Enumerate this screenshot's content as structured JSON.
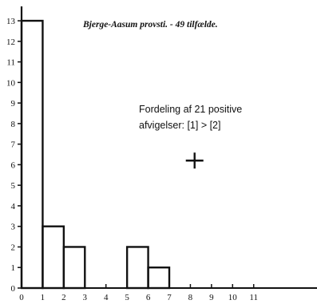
{
  "chart_data": {
    "type": "bar",
    "style": "step-histogram",
    "title": "Bjerge-Aasum provsti. - 49 tilfælde.",
    "xlabel": "",
    "ylabel": "",
    "x_ticks": [
      "0",
      "1",
      "2",
      "3",
      "4",
      "5",
      "6",
      "7",
      "8",
      "9",
      "10",
      "11"
    ],
    "y_ticks": [
      "0",
      "1",
      "2",
      "3",
      "4",
      "5",
      "6",
      "7",
      "8",
      "9",
      "10",
      "11",
      "12",
      "13"
    ],
    "xlim": [
      0,
      14
    ],
    "ylim": [
      0,
      13.7
    ],
    "grid": false,
    "bins": [
      {
        "x0": 0,
        "x1": 1,
        "value": 13
      },
      {
        "x0": 1,
        "x1": 2,
        "value": 3
      },
      {
        "x0": 2,
        "x1": 3,
        "value": 2
      },
      {
        "x0": 3,
        "x1": 4,
        "value": 0
      },
      {
        "x0": 4,
        "x1": 5,
        "value": 0
      },
      {
        "x0": 5,
        "x1": 6,
        "value": 2
      },
      {
        "x0": 6,
        "x1": 7,
        "value": 1
      }
    ],
    "annotation": {
      "line1": "Fordeling af 21 positive",
      "line2": "afvigelser: [1] > [2]"
    },
    "marker": {
      "symbol": "+",
      "x": 8.2,
      "y": 6.2
    }
  }
}
